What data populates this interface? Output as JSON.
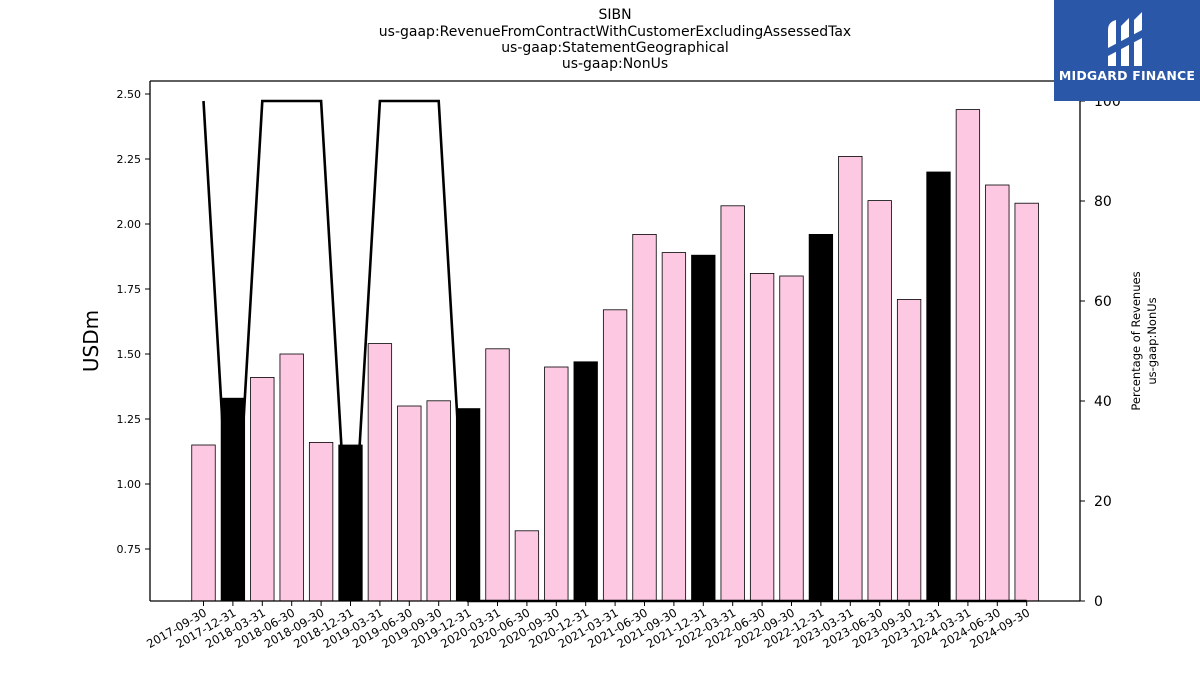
{
  "titles": [
    "SIBN",
    "us-gaap:RevenueFromContractWithCustomerExcludingAssessedTax",
    "us-gaap:StatementGeographical",
    "us-gaap:NonUs"
  ],
  "logo": {
    "text": "MIDGARD FINANCE",
    "background": "#2a57a8"
  },
  "chart_data": {
    "type": "bar",
    "categories": [
      "2017-09-30",
      "2017-12-31",
      "2018-03-31",
      "2018-06-30",
      "2018-09-30",
      "2018-12-31",
      "2019-03-31",
      "2019-06-30",
      "2019-09-30",
      "2019-12-31",
      "2020-03-31",
      "2020-06-30",
      "2020-09-30",
      "2020-12-31",
      "2021-03-31",
      "2021-06-30",
      "2021-09-30",
      "2021-12-31",
      "2022-03-31",
      "2022-06-30",
      "2022-09-30",
      "2022-12-31",
      "2023-03-31",
      "2023-06-30",
      "2023-09-30",
      "2023-12-31",
      "2024-03-31",
      "2024-06-30",
      "2024-09-30"
    ],
    "series": [
      {
        "values": [
          1.15,
          1.33,
          1.41,
          1.5,
          1.16,
          1.15,
          1.54,
          1.3,
          1.32,
          1.29,
          1.52,
          0.82,
          1.45,
          1.47,
          1.67,
          1.96,
          1.89,
          1.88,
          2.07,
          1.81,
          1.8,
          1.96,
          2.26,
          2.09,
          1.71,
          2.2,
          2.44,
          2.15,
          2.08
        ],
        "colors": [
          "#fcc8e2",
          "#000000",
          "#fcc8e2",
          "#fcc8e2",
          "#fcc8e2",
          "#000000",
          "#fcc8e2",
          "#fcc8e2",
          "#fcc8e2",
          "#000000",
          "#fcc8e2",
          "#fcc8e2",
          "#fcc8e2",
          "#000000",
          "#fcc8e2",
          "#fcc8e2",
          "#fcc8e2",
          "#000000",
          "#fcc8e2",
          "#fcc8e2",
          "#fcc8e2",
          "#000000",
          "#fcc8e2",
          "#fcc8e2",
          "#fcc8e2",
          "#000000",
          "#fcc8e2",
          "#fcc8e2",
          "#fcc8e2"
        ]
      }
    ],
    "line_series": {
      "axis": "right",
      "values": [
        100,
        0,
        100,
        100,
        100,
        0,
        100,
        100,
        100,
        0,
        0,
        0,
        0,
        0,
        0,
        0,
        0,
        0,
        0,
        0,
        0,
        0,
        0,
        0,
        0,
        0,
        0,
        0,
        0
      ],
      "color": "#000000"
    },
    "ylabel": "USDm",
    "ylabel_right": [
      "Percentage of Revenues",
      "us-gaap:NonUs"
    ],
    "ylim": [
      0.55,
      2.55
    ],
    "ylim_right": [
      0,
      104
    ],
    "yticks": [
      0.75,
      1.0,
      1.25,
      1.5,
      1.75,
      2.0,
      2.25,
      2.5
    ],
    "yticks_right": [
      0,
      20,
      40,
      60,
      80,
      100
    ],
    "grid": false,
    "legend": "none"
  }
}
